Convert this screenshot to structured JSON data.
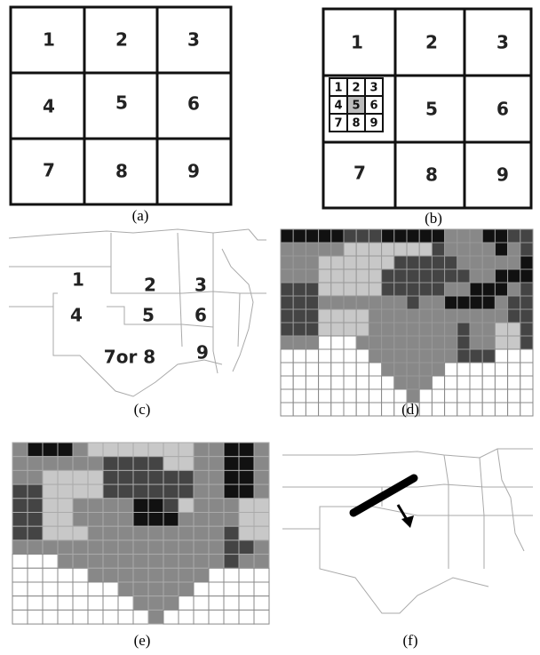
{
  "panels": [
    {
      "caption": "(a)",
      "cells": [
        "1",
        "2",
        "3",
        "4",
        "5",
        "6",
        "7",
        "8",
        "9"
      ]
    },
    {
      "caption": "(b)",
      "cells": [
        "1",
        "2",
        "3",
        "5",
        "6",
        "7",
        "8",
        "9"
      ],
      "subcells": [
        "1",
        "2",
        "3",
        "4",
        "5",
        "6",
        "7",
        "8",
        "9"
      ]
    },
    {
      "caption": "(c)",
      "labels": [
        "1",
        "2",
        "3",
        "4",
        "5",
        "6",
        "7or 8",
        "9"
      ]
    },
    {
      "caption": "(d)"
    },
    {
      "caption": "(e)"
    },
    {
      "caption": "(f)"
    }
  ]
}
